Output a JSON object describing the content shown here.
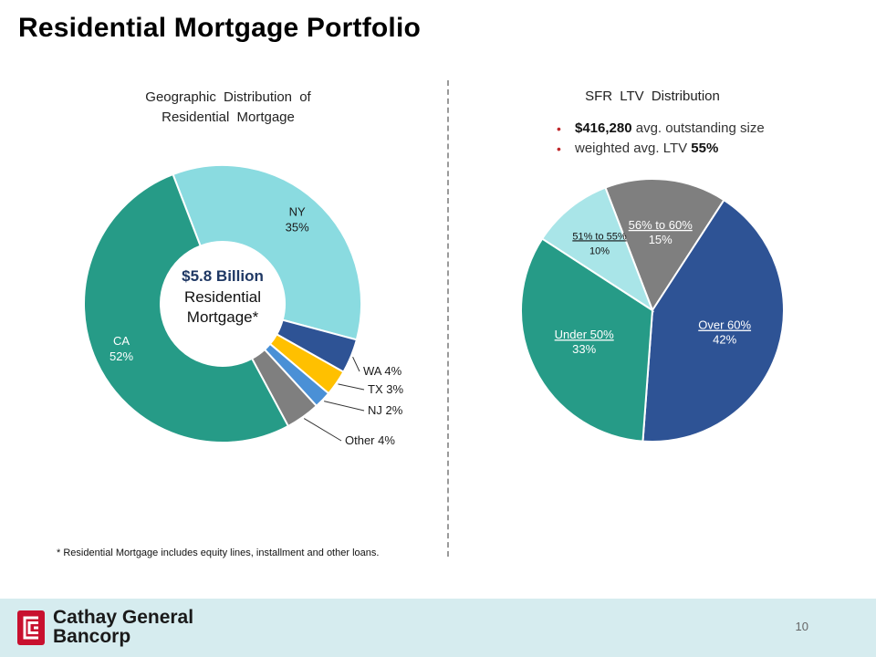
{
  "page": {
    "title": "Residential Mortgage Portfolio",
    "footnote": "* Residential Mortgage includes equity lines, installment and other loans.",
    "page_number": "10",
    "logo": {
      "line1": "Cathay General",
      "line2": "Bancorp"
    }
  },
  "left_chart": {
    "title_line1": "Geographic  Distribution  of",
    "title_line2": "Residential  Mortgage",
    "center_line1": "$5.8 Billion",
    "center_line2": "Residential",
    "center_line3": "Mortgage*"
  },
  "right_chart": {
    "title": "SFR  LTV  Distribution",
    "bullet1_value": "$416,280",
    "bullet1_text": " avg. outstanding size",
    "bullet2_text": "weighted avg. LTV ",
    "bullet2_value": "55%"
  },
  "chart_data": [
    {
      "type": "pie",
      "title": "Geographic Distribution of Residential Mortgage",
      "style": "donut",
      "categories": [
        "NY",
        "WA",
        "TX",
        "NJ",
        "Other",
        "CA"
      ],
      "values": [
        35,
        4,
        3,
        2,
        4,
        52
      ],
      "labels": [
        "NY",
        "WA 4%",
        "TX 3%",
        "NJ 2%",
        "Other 4%",
        "CA"
      ],
      "pct_labels": [
        "35%",
        "",
        "",
        "",
        "",
        "52%"
      ],
      "colors": [
        "#8adbe0",
        "#2e5395",
        "#ffc000",
        "#4a90d6",
        "#7f7f7f",
        "#269b87"
      ],
      "center_text": "$5.8 Billion Residential Mortgage*"
    },
    {
      "type": "pie",
      "title": "SFR LTV Distribution",
      "categories": [
        "56% to 60%",
        "Over 60%",
        "Under 50%",
        "51% to 55%"
      ],
      "values": [
        15,
        42,
        33,
        10
      ],
      "pct_labels": [
        "15%",
        "42%",
        "33%",
        "10%"
      ],
      "colors": [
        "#7f7f7f",
        "#2e5395",
        "#269b87",
        "#a9e5e8"
      ]
    }
  ]
}
